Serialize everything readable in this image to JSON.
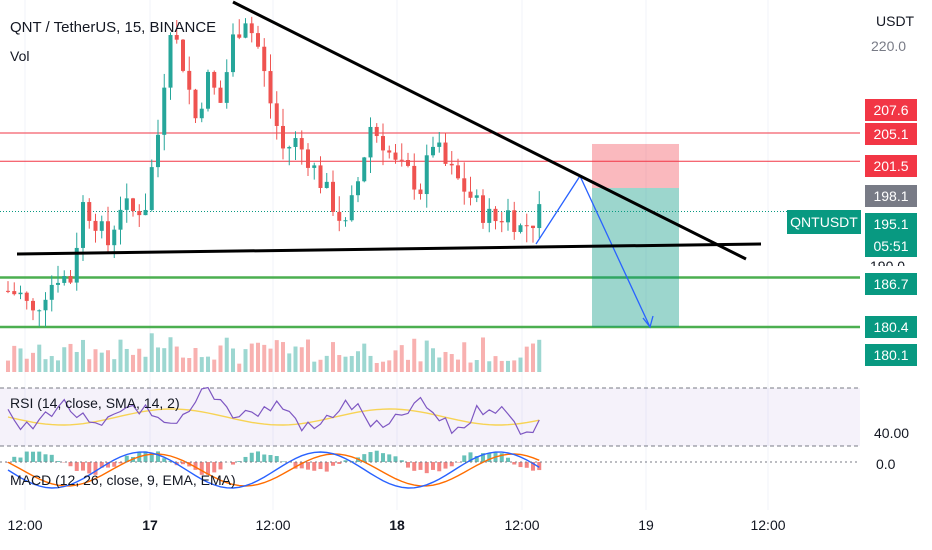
{
  "header": {
    "title": "QNT / TetherUS, 15, BINANCE",
    "vol_label": "Vol",
    "currency": "USDT"
  },
  "price_scale": {
    "top_label": "220.0",
    "partial_label": "190.0",
    "tags": [
      {
        "value": "207.6",
        "color": "#f23645"
      },
      {
        "value": "205.1",
        "color": "#f23645"
      },
      {
        "value": "201.5",
        "color": "#f23645"
      },
      {
        "value": "198.1",
        "color": "#787b86"
      },
      {
        "value": "195.1",
        "color": "#089981"
      },
      {
        "value": "186.7",
        "color": "#089981"
      },
      {
        "value": "180.4",
        "color": "#089981"
      },
      {
        "value": "180.1",
        "color": "#089981"
      }
    ],
    "symbol_tag": "QNTUSDT",
    "countdown": "05:51"
  },
  "indicators": {
    "rsi_label": "RSI (14, close, SMA, 14, 2)",
    "rsi_scale": "40.00",
    "macd_label": "MACD (12, 26, close, 9, EMA, EMA)",
    "macd_scale": "0.0"
  },
  "time_axis": {
    "labels": [
      {
        "text": "12:00",
        "bold": false
      },
      {
        "text": "17",
        "bold": true
      },
      {
        "text": "12:00",
        "bold": false
      },
      {
        "text": "18",
        "bold": true
      },
      {
        "text": "12:00",
        "bold": false
      },
      {
        "text": "19",
        "bold": false
      },
      {
        "text": "12:00",
        "bold": false
      }
    ]
  },
  "chart_data": {
    "type": "candlestick",
    "ylim": [
      175,
      225
    ],
    "horizontal_levels": [
      {
        "price": 205.1,
        "color": "#f23645"
      },
      {
        "price": 201.5,
        "color": "#f23645"
      },
      {
        "price": 186.7,
        "color": "#4caf50"
      },
      {
        "price": 180.4,
        "color": "#4caf50"
      }
    ],
    "position": {
      "entry": 198.1,
      "stop": 203.7,
      "target": 180.4
    },
    "price_path": [
      [
        0,
        185
      ],
      [
        8,
        184.5
      ],
      [
        16,
        182
      ],
      [
        24,
        185
      ],
      [
        32,
        187
      ],
      [
        40,
        186.5
      ],
      [
        48,
        196
      ],
      [
        56,
        194
      ],
      [
        64,
        191
      ],
      [
        72,
        196
      ],
      [
        80,
        195
      ],
      [
        88,
        196
      ],
      [
        96,
        205
      ],
      [
        104,
        219
      ],
      [
        112,
        214
      ],
      [
        120,
        207
      ],
      [
        128,
        212
      ],
      [
        136,
        209
      ],
      [
        144,
        217
      ],
      [
        152,
        220
      ],
      [
        160,
        216
      ],
      [
        168,
        209
      ],
      [
        176,
        203
      ],
      [
        184,
        204
      ],
      [
        192,
        202
      ],
      [
        200,
        199
      ],
      [
        208,
        196
      ],
      [
        216,
        193
      ],
      [
        224,
        199
      ],
      [
        232,
        206
      ],
      [
        240,
        204
      ],
      [
        248,
        201
      ],
      [
        256,
        200
      ],
      [
        264,
        198
      ],
      [
        272,
        204
      ],
      [
        280,
        201
      ],
      [
        288,
        199
      ],
      [
        296,
        197
      ],
      [
        304,
        195
      ],
      [
        312,
        194
      ],
      [
        320,
        195
      ],
      [
        328,
        193
      ],
      [
        336,
        194
      ],
      [
        344,
        196
      ]
    ]
  }
}
